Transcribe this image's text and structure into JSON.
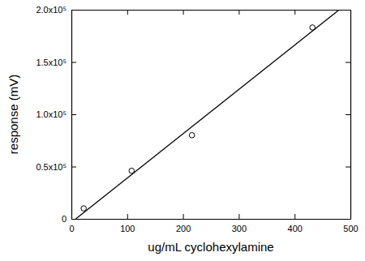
{
  "chart_data": {
    "type": "scatter",
    "xlabel": "ug/mL cyclohexylamine",
    "ylabel": "response (mV)",
    "xlim": [
      0,
      500
    ],
    "ylim": [
      0,
      200000
    ],
    "xticks": [
      0,
      100,
      200,
      300,
      400,
      500
    ],
    "yticks": [
      0,
      {
        "value": 50000,
        "label": "0.5x10⁵"
      },
      {
        "value": 100000,
        "label": "1.0x10⁵"
      },
      {
        "value": 150000,
        "label": "1.5x10⁵"
      },
      {
        "value": 200000,
        "label": "2.0x10⁵"
      }
    ],
    "grid": false,
    "series": [
      {
        "type": "scatter",
        "marker": "circle",
        "color": "#000000",
        "x": [
          22,
          108,
          216,
          432
        ],
        "values": [
          10000,
          46000,
          80000,
          183000
        ]
      },
      {
        "type": "line",
        "line_style": "solid",
        "color": "#000000",
        "x": [
          8,
          480
        ],
        "values": [
          0,
          200000
        ]
      }
    ]
  }
}
